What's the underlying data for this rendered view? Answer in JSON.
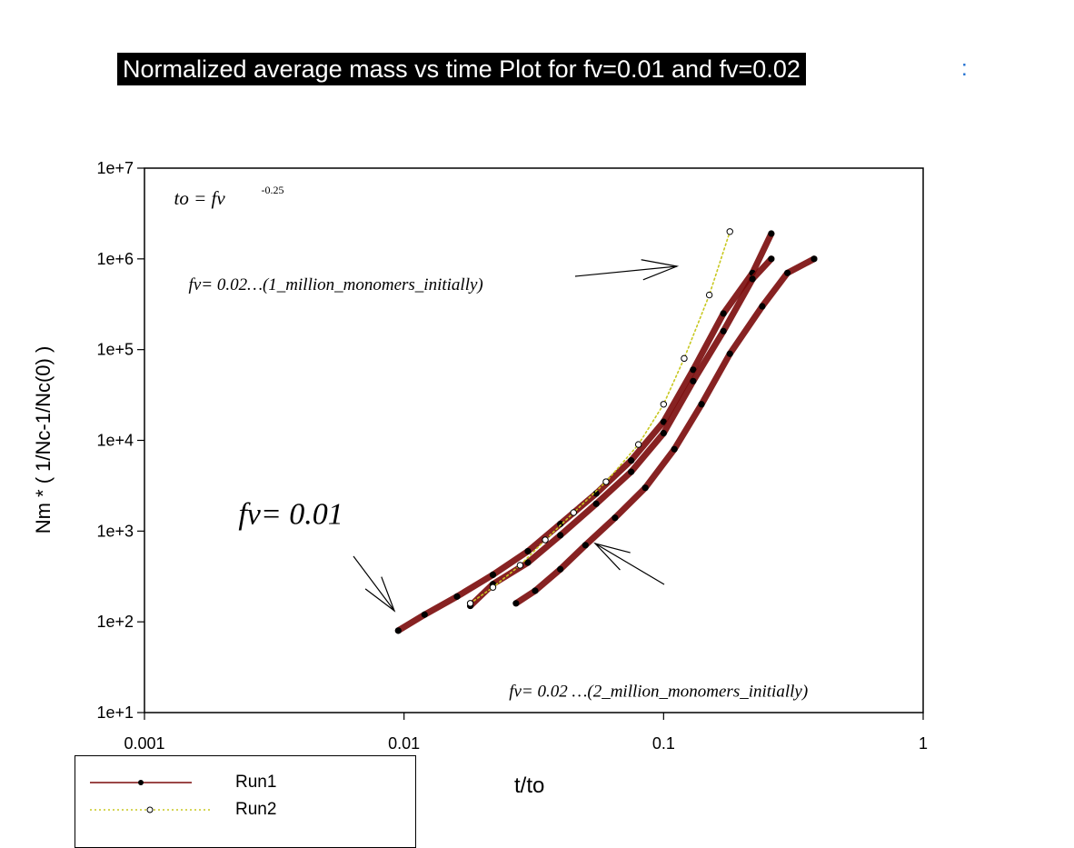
{
  "chart_data": {
    "type": "scatter",
    "title": "Normalized average mass vs time Plot for fv=0.01 and fv=0.02",
    "xlabel": "t/to",
    "ylabel": "Nm * ( 1/Nc-1/Nc(0) )",
    "x_scale": "log",
    "y_scale": "log",
    "xlim": [
      0.001,
      1
    ],
    "ylim": [
      10,
      10000000
    ],
    "x_ticks": [
      "0.001",
      "0.01",
      "0.1",
      "1"
    ],
    "y_ticks": [
      "1e+1",
      "1e+2",
      "1e+3",
      "1e+4",
      "1e+5",
      "1e+6",
      "1e+7"
    ],
    "legend_position": "bottom-left",
    "series": [
      {
        "name": "Run1",
        "color": "#7a0a0a",
        "marker": "filled-circle",
        "line": "solid",
        "curves": [
          {
            "group": "fv=0.01",
            "x": [
              0.0095,
              0.012,
              0.016,
              0.022,
              0.03,
              0.04,
              0.055,
              0.075,
              0.1,
              0.13,
              0.17,
              0.22,
              0.26
            ],
            "y": [
              80,
              120,
              190,
              330,
              600,
              1200,
              2600,
              6000,
              16000,
              60000,
              250000,
              700000,
              1900000
            ]
          },
          {
            "group": "fv=0.02 (1 million monomers initially)",
            "x": [
              0.018,
              0.022,
              0.03,
              0.04,
              0.055,
              0.075,
              0.1,
              0.13,
              0.17,
              0.22,
              0.26
            ],
            "y": [
              150,
              260,
              450,
              900,
              2000,
              4500,
              12000,
              45000,
              160000,
              600000,
              1000000
            ]
          },
          {
            "group": "fv=0.02 (2 million monomers initially)",
            "x": [
              0.027,
              0.032,
              0.04,
              0.05,
              0.065,
              0.085,
              0.11,
              0.14,
              0.18,
              0.24,
              0.3,
              0.38
            ],
            "y": [
              160,
              220,
              380,
              700,
              1400,
              3000,
              8000,
              25000,
              90000,
              300000,
              700000,
              1000000
            ]
          }
        ]
      },
      {
        "name": "Run2",
        "color": "#c8c820",
        "marker": "open-circle",
        "line": "dotted",
        "curves": [
          {
            "group": "fv=0.02 (1 million monomers initially)",
            "x": [
              0.018,
              0.022,
              0.028,
              0.035,
              0.045,
              0.06,
              0.08,
              0.1,
              0.12,
              0.15,
              0.18
            ],
            "y": [
              160,
              240,
              420,
              800,
              1600,
              3500,
              9000,
              25000,
              80000,
              400000,
              2000000
            ]
          }
        ]
      }
    ],
    "annotations": [
      {
        "text_main": "fv= 0.01",
        "x": 0.0023,
        "y": 1200
      },
      {
        "text_main": "to = fv",
        "text_sup": "-0.25",
        "x": 0.0013,
        "y": 5000000
      },
      {
        "text_main": "fv= 0.02…(1_million_monomers_initially)",
        "x": 0.0013,
        "y": 550000
      },
      {
        "text_main": "fv= 0.02 …(2_million_monomers_initially)",
        "x": 0.026,
        "y": 18
      }
    ]
  },
  "page": {
    "stray_mark": ":"
  }
}
